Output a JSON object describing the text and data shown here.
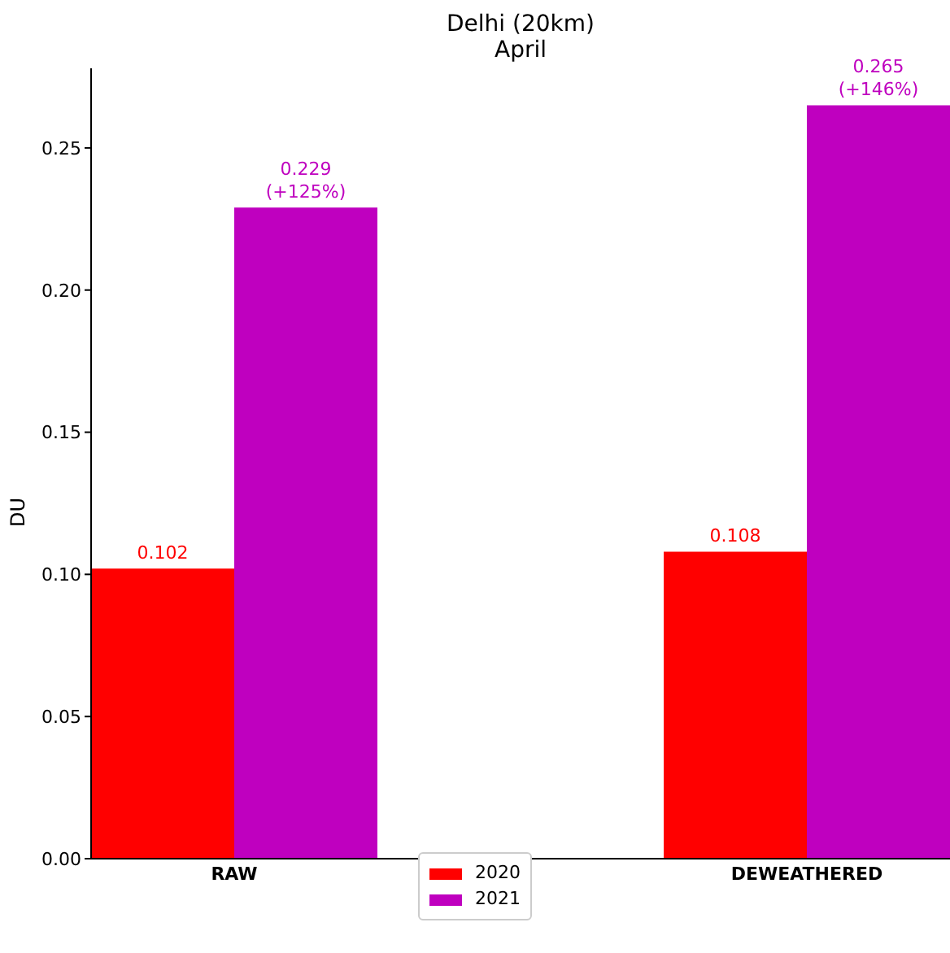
{
  "chart_data": {
    "type": "bar",
    "title": "Delhi (20km)",
    "subtitle": "April",
    "ylabel": "DU",
    "categories": [
      "RAW",
      "DEWEATHERED"
    ],
    "series": [
      {
        "name": "2020",
        "color": "#ff0000",
        "values": [
          0.102,
          0.108
        ],
        "value_labels": [
          "0.102",
          "0.108"
        ]
      },
      {
        "name": "2021",
        "color": "#bf00bf",
        "values": [
          0.229,
          0.265
        ],
        "value_labels": [
          "0.229\n(+125%)",
          "0.265\n(+146%)"
        ]
      }
    ],
    "ylim": [
      0,
      0.278
    ],
    "yticks": [
      {
        "value": 0,
        "label": "0.00"
      },
      {
        "value": 0.05,
        "label": "0.05"
      },
      {
        "value": 0.1,
        "label": "0.10"
      },
      {
        "value": 0.15,
        "label": "0.15"
      },
      {
        "value": 0.2,
        "label": "0.20"
      },
      {
        "value": 0.25,
        "label": "0.25"
      }
    ],
    "legend": "bottom",
    "grid": false
  }
}
